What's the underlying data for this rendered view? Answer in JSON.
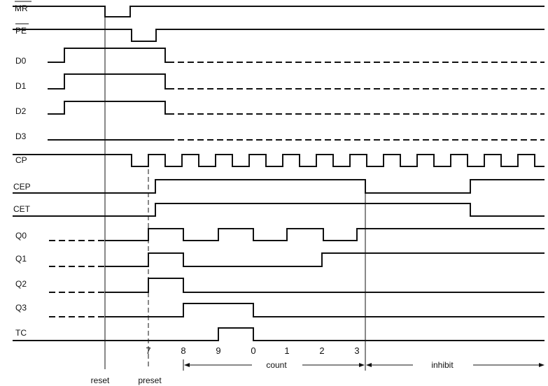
{
  "signals": [
    {
      "id": "mr",
      "label": "MR"
    },
    {
      "id": "pe",
      "label": "PE"
    },
    {
      "id": "d0",
      "label": "D0"
    },
    {
      "id": "d1",
      "label": "D1"
    },
    {
      "id": "d2",
      "label": "D2"
    },
    {
      "id": "d3",
      "label": "D3"
    },
    {
      "id": "cp",
      "label": "CP"
    },
    {
      "id": "cep",
      "label": "CEP"
    },
    {
      "id": "cet",
      "label": "CET"
    },
    {
      "id": "q0",
      "label": "Q0"
    },
    {
      "id": "q1",
      "label": "Q1"
    },
    {
      "id": "q2",
      "label": "Q2"
    },
    {
      "id": "q3",
      "label": "Q3"
    },
    {
      "id": "tc",
      "label": "TC"
    }
  ],
  "count_ticks": [
    "7",
    "8",
    "9",
    "0",
    "1",
    "2",
    "3"
  ],
  "phases": {
    "count": "count",
    "inhibit": "inhibit"
  },
  "events": {
    "reset": "reset",
    "preset": "preset"
  }
}
